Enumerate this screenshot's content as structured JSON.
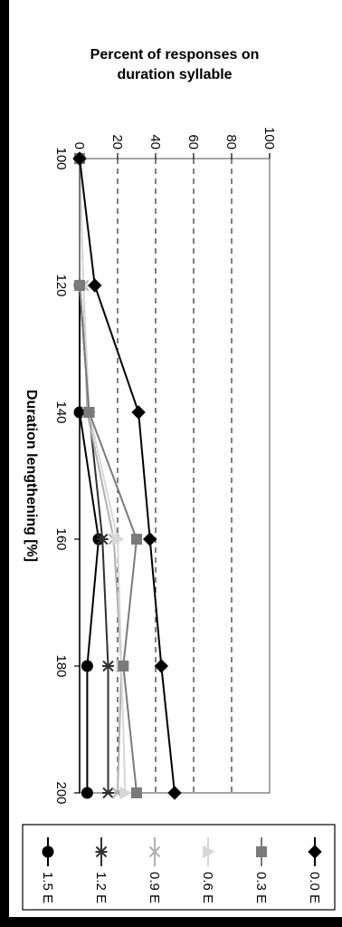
{
  "chart_data": {
    "type": "line",
    "title": "",
    "xlabel": "Duration lengthening [%]",
    "ylabel_lines": [
      "Percent of responses on",
      "duration syllable"
    ],
    "x": [
      100,
      120,
      140,
      160,
      180,
      200
    ],
    "xlim": [
      100,
      200
    ],
    "ylim": [
      0,
      100
    ],
    "x_ticks": [
      "100",
      "120",
      "140",
      "160",
      "180",
      "200"
    ],
    "y_ticks": [
      "0",
      "20",
      "40",
      "60",
      "80",
      "100"
    ],
    "grid": "dashed horizontal at 20, 40, 60, 80",
    "legend_position": "right",
    "series": [
      {
        "name": "0.0 E",
        "marker": "diamond",
        "color": "#000000",
        "values": [
          0,
          8,
          31,
          37,
          43,
          50
        ]
      },
      {
        "name": "0.3 E",
        "marker": "square",
        "color": "#7a7a7a",
        "values": [
          0,
          0,
          5,
          30,
          23,
          30
        ]
      },
      {
        "name": "0.6 E",
        "marker": "triangle",
        "color": "#d8d8d8",
        "values": [
          0,
          2,
          5,
          20,
          22,
          24
        ]
      },
      {
        "name": "0.9 E",
        "marker": "x",
        "color": "#b0b0b0",
        "values": [
          0,
          2,
          4,
          18,
          22,
          20
        ]
      },
      {
        "name": "1.2 E",
        "marker": "star",
        "color": "#303030",
        "values": [
          0,
          0,
          5,
          12,
          15,
          15
        ]
      },
      {
        "name": "1.5 E",
        "marker": "circle",
        "color": "#000000",
        "values": [
          0,
          0,
          0,
          10,
          4,
          4
        ]
      }
    ]
  }
}
